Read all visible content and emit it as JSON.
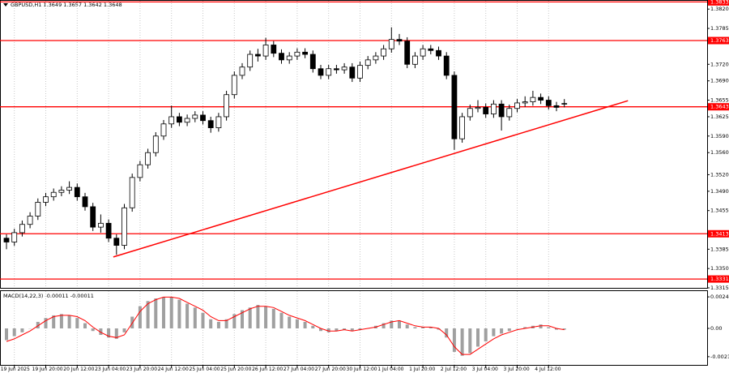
{
  "chart_data": [
    {
      "type": "candlestick",
      "title": "GBPUSD,H1  1.3649 1.3657 1.3642 1.3648",
      "categories": [
        null,
        "19 Jun 2025",
        null,
        null,
        null,
        "19 Jun 20:00",
        null,
        null,
        null,
        "20 Jun 12:00",
        null,
        null,
        null,
        "23 Jun 04:00",
        null,
        null,
        null,
        "23 Jun 20:00",
        null,
        null,
        null,
        "24 Jun 12:00",
        null,
        null,
        null,
        "25 Jun 04:00",
        null,
        null,
        null,
        "25 Jun 20:00",
        null,
        null,
        null,
        "26 Jun 12:00",
        null,
        null,
        null,
        "27 Jun 04:00",
        null,
        null,
        null,
        "27 Jun 20:00",
        null,
        null,
        null,
        "30 Jun 12:00",
        null,
        null,
        null,
        "1 Jul 04:00",
        null,
        null,
        null,
        "1 Jul 20:00",
        null,
        null,
        null,
        "2 Jul 12:00",
        null,
        null,
        null,
        "3 Jul 04:00",
        null,
        null,
        null,
        "3 Jul 20:00",
        null,
        null,
        null,
        "4 Jul 12:00",
        null,
        null
      ],
      "open": [
        1.3405,
        1.3398,
        1.3415,
        1.343,
        1.3445,
        1.347,
        1.348,
        1.3488,
        1.3492,
        1.3497,
        1.348,
        1.3462,
        1.3425,
        1.3432,
        1.3405,
        1.3392,
        1.346,
        1.3515,
        1.3538,
        1.356,
        1.359,
        1.3612,
        1.3625,
        1.3615,
        1.3622,
        1.3628,
        1.3618,
        1.3605,
        1.3625,
        1.3665,
        1.37,
        1.3715,
        1.3738,
        1.3735,
        1.3755,
        1.374,
        1.3728,
        1.3735,
        1.3742,
        1.3738,
        1.3712,
        1.37,
        1.3712,
        1.371,
        1.3715,
        1.3695,
        1.3718,
        1.3728,
        1.3735,
        1.3748,
        1.3765,
        1.3762,
        1.372,
        1.3735,
        1.3748,
        1.3745,
        1.3735,
        1.37,
        1.3585,
        1.3625,
        1.364,
        1.3642,
        1.363,
        1.3648,
        1.3625,
        1.364,
        1.365,
        1.3652,
        1.366,
        1.3655,
        1.3645,
        1.3649
      ],
      "high": [
        1.3412,
        1.3422,
        1.3437,
        1.3452,
        1.3477,
        1.3487,
        1.3495,
        1.3499,
        1.3508,
        1.3504,
        1.3487,
        1.3469,
        1.3448,
        1.3439,
        1.3412,
        1.3467,
        1.3522,
        1.3545,
        1.3567,
        1.3597,
        1.3619,
        1.3645,
        1.3632,
        1.3629,
        1.3635,
        1.3635,
        1.3625,
        1.3632,
        1.3672,
        1.3707,
        1.3722,
        1.3745,
        1.3748,
        1.3768,
        1.3762,
        1.3747,
        1.3742,
        1.3749,
        1.3749,
        1.3745,
        1.3719,
        1.3719,
        1.3719,
        1.3722,
        1.3722,
        1.3725,
        1.3735,
        1.3742,
        1.3755,
        1.3787,
        1.3775,
        1.3769,
        1.3742,
        1.3755,
        1.3755,
        1.3752,
        1.3742,
        1.3707,
        1.3632,
        1.3647,
        1.3655,
        1.3649,
        1.3655,
        1.3655,
        1.3647,
        1.3657,
        1.3662,
        1.3672,
        1.3667,
        1.3662,
        1.3652,
        1.3657
      ],
      "low": [
        1.3385,
        1.3391,
        1.3408,
        1.3423,
        1.3438,
        1.3463,
        1.3473,
        1.3481,
        1.3485,
        1.3473,
        1.3455,
        1.3418,
        1.3415,
        1.3398,
        1.3375,
        1.3385,
        1.3453,
        1.3508,
        1.3531,
        1.3553,
        1.3583,
        1.3605,
        1.3608,
        1.3608,
        1.3615,
        1.3611,
        1.3596,
        1.3598,
        1.3618,
        1.3658,
        1.3693,
        1.3708,
        1.3725,
        1.3728,
        1.3733,
        1.3721,
        1.3721,
        1.3728,
        1.3731,
        1.3705,
        1.3693,
        1.3693,
        1.3703,
        1.3703,
        1.3688,
        1.3688,
        1.3711,
        1.3721,
        1.3728,
        1.3741,
        1.3755,
        1.3713,
        1.3713,
        1.3728,
        1.3738,
        1.3728,
        1.3693,
        1.3565,
        1.3578,
        1.3618,
        1.3633,
        1.3623,
        1.3623,
        1.36,
        1.3618,
        1.3633,
        1.3643,
        1.3645,
        1.3648,
        1.3638,
        1.3635,
        1.3642
      ],
      "close": [
        1.3398,
        1.3415,
        1.343,
        1.3445,
        1.347,
        1.348,
        1.3488,
        1.3492,
        1.3497,
        1.348,
        1.3462,
        1.3425,
        1.3432,
        1.3405,
        1.3392,
        1.346,
        1.3515,
        1.3538,
        1.356,
        1.359,
        1.3612,
        1.3625,
        1.3615,
        1.3622,
        1.3628,
        1.3618,
        1.3605,
        1.3625,
        1.3665,
        1.37,
        1.3715,
        1.3738,
        1.3735,
        1.3755,
        1.374,
        1.3728,
        1.3735,
        1.3742,
        1.3738,
        1.3712,
        1.37,
        1.3712,
        1.371,
        1.3715,
        1.3695,
        1.3718,
        1.3728,
        1.3735,
        1.3748,
        1.3765,
        1.3762,
        1.372,
        1.3735,
        1.3748,
        1.3745,
        1.3735,
        1.37,
        1.3585,
        1.3625,
        1.364,
        1.3642,
        1.363,
        1.3648,
        1.3625,
        1.364,
        1.365,
        1.3652,
        1.366,
        1.3655,
        1.3645,
        1.3642,
        1.3648
      ],
      "ylim": [
        1.3315,
        1.3835
      ],
      "yticks": [
        {
          "value": 1.382,
          "label": "1.3820"
        },
        {
          "value": 1.3785,
          "label": "1.3785"
        },
        {
          "value": 1.372,
          "label": "1.3720"
        },
        {
          "value": 1.369,
          "label": "1.3690"
        },
        {
          "value": 1.3655,
          "label": "1.3655"
        },
        {
          "value": 1.3625,
          "label": "1.3625"
        },
        {
          "value": 1.359,
          "label": "1.3590"
        },
        {
          "value": 1.356,
          "label": "1.3560"
        },
        {
          "value": 1.352,
          "label": "1.3520"
        },
        {
          "value": 1.349,
          "label": "1.3490"
        },
        {
          "value": 1.3455,
          "label": "1.3455"
        },
        {
          "value": 1.3385,
          "label": "1.3385"
        },
        {
          "value": 1.335,
          "label": "1.3350"
        },
        {
          "value": 1.3315,
          "label": "1.3315"
        }
      ],
      "levels": [
        {
          "value": 1.3833,
          "label": "1.3833"
        },
        {
          "value": 1.3763,
          "label": "1.3763"
        },
        {
          "value": 1.3643,
          "label": "1.3643"
        },
        {
          "value": 1.3413,
          "label": "1.3413"
        },
        {
          "value": 1.3331,
          "label": "1.3331"
        }
      ],
      "level_color": "#ff0000",
      "trendline": {
        "x": [
          13.6,
          79.1
        ],
        "y": [
          1.3371,
          1.3654
        ]
      },
      "grid": true,
      "color": "#000000"
    },
    {
      "type": "macd",
      "title": "MACD(14,22,3) -0.00011 -0.00011",
      "histogram": [
        -0.0009,
        -0.0006,
        -0.0003,
        0.0,
        0.0005,
        0.0008,
        0.001,
        0.0011,
        0.001,
        0.0008,
        0.0004,
        -0.0002,
        -0.0005,
        -0.0007,
        -0.0008,
        -0.0003,
        0.0009,
        0.0017,
        0.0021,
        0.0023,
        0.0024,
        0.0024,
        0.0022,
        0.0019,
        0.0016,
        0.0012,
        0.0007,
        0.0005,
        0.0007,
        0.0011,
        0.0014,
        0.0016,
        0.0018,
        0.0017,
        0.0015,
        0.0012,
        0.0009,
        0.0007,
        0.0005,
        0.0002,
        -0.0002,
        -0.0003,
        -0.0002,
        -0.0001,
        -0.0002,
        -0.0001,
        0.0,
        0.0002,
        0.0004,
        0.0006,
        0.0006,
        0.0003,
        0.0001,
        0.0001,
        0.0001,
        -0.0001,
        -0.0007,
        -0.0018,
        -0.0021,
        -0.0019,
        -0.0014,
        -0.001,
        -0.0006,
        -0.0004,
        -0.0002,
        0.0,
        0.0001,
        0.0002,
        0.0003,
        0.0001,
        -0.0001,
        -0.0001
      ],
      "signal": [
        -0.001,
        -0.0008,
        -0.0005,
        -0.0002,
        0.0002,
        0.0006,
        0.0009,
        0.001,
        0.001,
        0.0009,
        0.0006,
        0.0001,
        -0.0003,
        -0.0006,
        -0.0007,
        -0.0005,
        0.0004,
        0.0013,
        0.0019,
        0.0022,
        0.0024,
        0.0024,
        0.0023,
        0.002,
        0.0017,
        0.0014,
        0.0009,
        0.0006,
        0.0006,
        0.0009,
        0.0012,
        0.0015,
        0.0017,
        0.0017,
        0.0016,
        0.0013,
        0.001,
        0.0008,
        0.0006,
        0.0003,
        0.0,
        -0.0002,
        -0.0002,
        -0.0001,
        -0.0002,
        -0.0001,
        0.0,
        0.0001,
        0.0003,
        0.0005,
        0.0006,
        0.0004,
        0.0002,
        0.0001,
        0.0001,
        0.0,
        -0.0005,
        -0.0014,
        -0.002,
        -0.002,
        -0.0016,
        -0.0012,
        -0.0008,
        -0.0005,
        -0.0003,
        -0.0001,
        0.0,
        0.0001,
        0.0002,
        0.0002,
        0.0,
        -0.0001
      ],
      "histogram_color": "#a0a0a0",
      "signal_color": "#ff0000",
      "ylim": [
        -0.0028,
        0.0028
      ],
      "yticks": [
        0.00242,
        {
          "value": 0,
          "label": "0.00"
        },
        -0.00217
      ]
    }
  ]
}
